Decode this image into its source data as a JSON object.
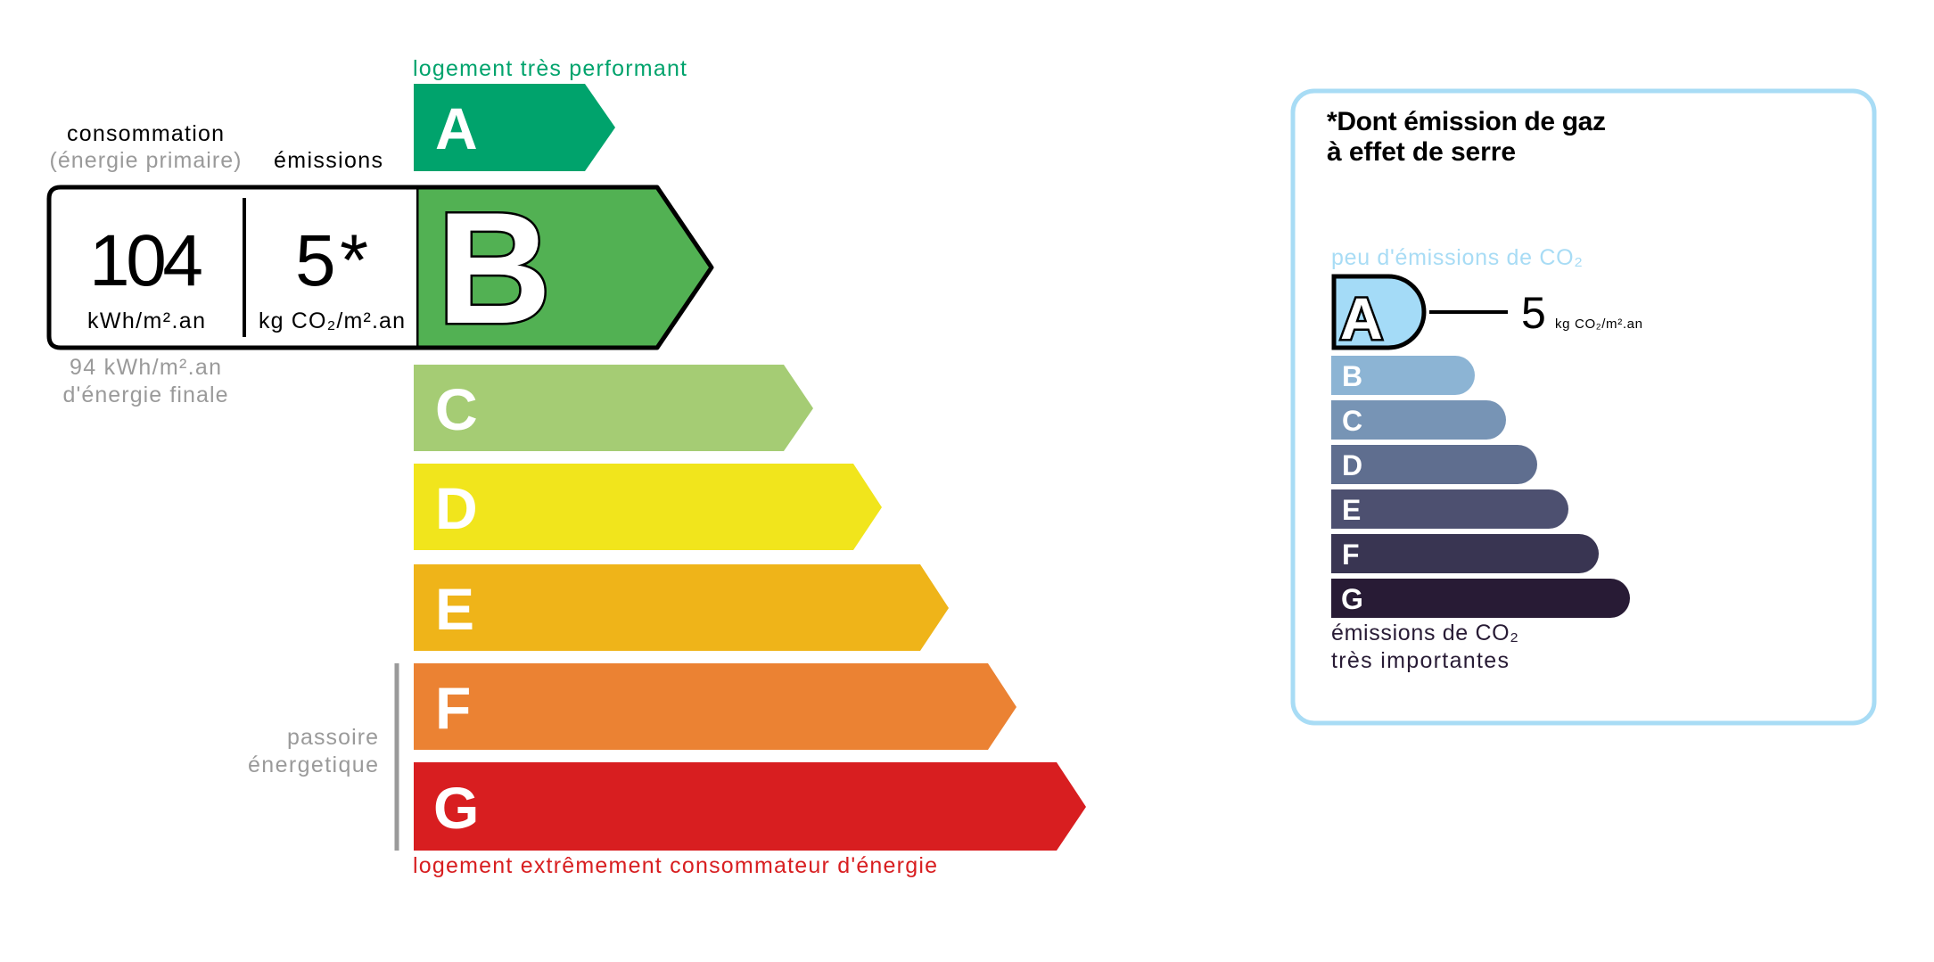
{
  "dpe": {
    "top_label": "logement très performant",
    "bottom_label": "logement extrêmement consommateur d'énergie",
    "consumption_label": "consommation",
    "consumption_sub": "(énergie primaire)",
    "emissions_label": "émissions",
    "consumption_value": "104",
    "consumption_unit": "kWh/m².an",
    "emissions_value": "5*",
    "emissions_unit": "kg CO₂/m².an",
    "final_energy_value": "94 kWh/m².an",
    "final_energy_label": "d'énergie finale",
    "passoire_line1": "passoire",
    "passoire_line2": "énergetique",
    "current_class": "B",
    "classes": [
      {
        "letter": "A",
        "color": "#00a36c"
      },
      {
        "letter": "B",
        "color": "#52b153"
      },
      {
        "letter": "C",
        "color": "#a5cc74"
      },
      {
        "letter": "D",
        "color": "#f1e51c"
      },
      {
        "letter": "E",
        "color": "#efb419"
      },
      {
        "letter": "F",
        "color": "#eb8233"
      },
      {
        "letter": "G",
        "color": "#d81e20"
      }
    ]
  },
  "ges": {
    "title_line1": "*Dont émission de gaz",
    "title_line2": "à effet de serre",
    "top_label": "peu d'émissions de CO₂",
    "bottom_line1": "émissions de CO₂",
    "bottom_line2": "très importantes",
    "current_class": "A",
    "value": "5",
    "unit": "kg CO₂/m².an",
    "border_color": "#a8dcf5",
    "classes": [
      {
        "letter": "A",
        "color": "#a4dbf7"
      },
      {
        "letter": "B",
        "color": "#8cb4d4"
      },
      {
        "letter": "C",
        "color": "#7794b5"
      },
      {
        "letter": "D",
        "color": "#5f6e8f"
      },
      {
        "letter": "E",
        "color": "#4d5070"
      },
      {
        "letter": "F",
        "color": "#393552"
      },
      {
        "letter": "G",
        "color": "#281b35"
      }
    ]
  }
}
